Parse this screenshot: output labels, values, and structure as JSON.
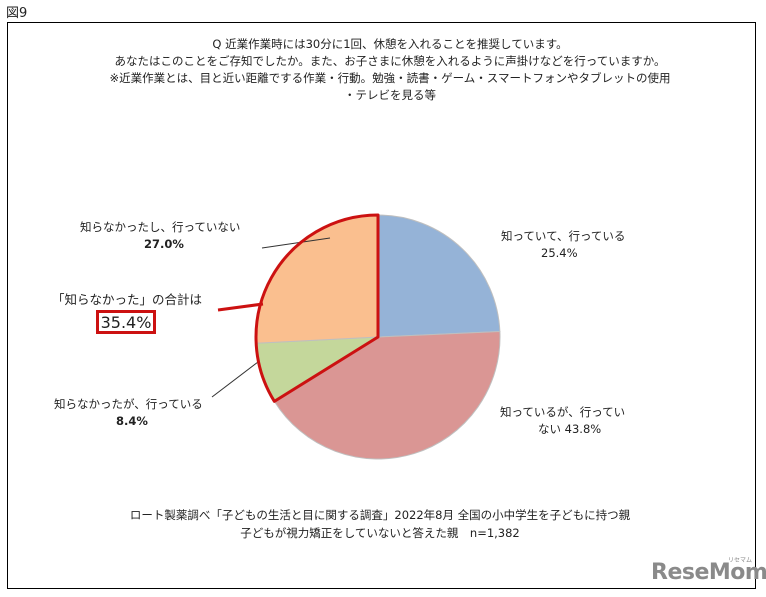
{
  "figure_label": "図9",
  "question": [
    "Q 近業作業時には30分に1回、休憩を入れることを推奨しています。",
    "あなたはこのことをご存知でしたか。また、お子さまに休憩を入れるように声掛けなどを行っていますか。",
    "※近業作業とは、目と近い距離でする作業・行動。勉強・読書・ゲーム・スマートフォンやタブレットの使用",
    "・テレビを見る等"
  ],
  "chart_data": {
    "type": "pie",
    "start_angle_deg": 0,
    "direction": "clockwise",
    "slices": [
      {
        "label": "知っていて、行っている",
        "value": 25.4,
        "value_label": "25.4%",
        "color": "#95b3d7"
      },
      {
        "label": "知っているが、行ってい",
        "label_cont": "ない",
        "value": 43.8,
        "value_label": "43.8%",
        "color": "#da9694"
      },
      {
        "label": "知らなかったが、行っている",
        "value": 8.4,
        "value_label": "8.4%",
        "color": "#c4d79b"
      },
      {
        "label": "知らなかったし、行っていない",
        "value": 27.0,
        "value_label": "27.0%",
        "color": "#fabf8f"
      }
    ],
    "highlight": {
      "caption": "「知らなかった」の合計は",
      "value": "35.4%",
      "color": "#cc1111"
    }
  },
  "source_note": [
    "ロート製薬調べ「子どもの生活と目に関する調査」2022年8月 全国の小中学生を子どもに持つ親",
    "子どもが視力矯正をしていないと答えた親　n=1,382"
  ],
  "watermark": {
    "text": "ReseMom",
    "sub": "リセマム"
  }
}
